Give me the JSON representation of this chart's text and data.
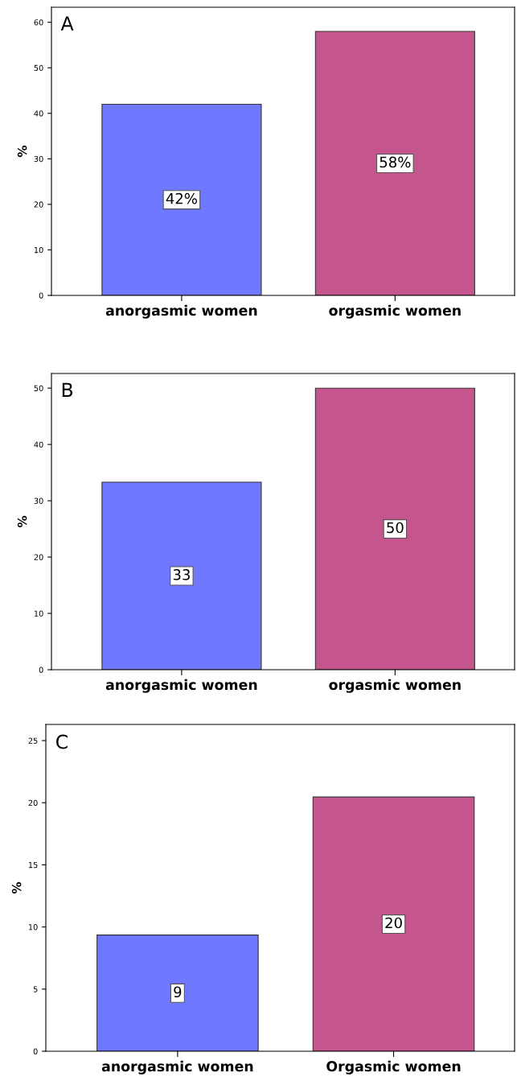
{
  "chart_data": [
    {
      "type": "bar",
      "ylabel": "%",
      "categories": [
        "anorgasmic women",
        "orgasmic women"
      ],
      "values": [
        42,
        58
      ],
      "colors": [
        "#6f78fe",
        "#c5558d"
      ],
      "value_labels": [
        "42%",
        "58%"
      ],
      "ylim": [
        0,
        63.3
      ],
      "yticks": [
        0,
        10,
        20,
        30,
        40,
        50,
        60
      ],
      "annotations": [
        "A"
      ],
      "grid": false,
      "legend": false
    },
    {
      "type": "bar",
      "ylabel": "%",
      "categories": [
        "anorgasmic women",
        "orgasmic women"
      ],
      "values": [
        33.3,
        50
      ],
      "colors": [
        "#6f78fe",
        "#c5558d"
      ],
      "value_labels": [
        "33",
        "50"
      ],
      "ylim": [
        0,
        52.6
      ],
      "yticks": [
        0,
        10,
        20,
        30,
        40,
        50
      ],
      "annotations": [
        "B"
      ],
      "grid": false,
      "legend": false
    },
    {
      "type": "bar",
      "ylabel": "%",
      "categories": [
        "anorgasmic women",
        "Orgasmic women"
      ],
      "values": [
        9.35,
        20.46
      ],
      "colors": [
        "#6f78fe",
        "#c5558d"
      ],
      "value_labels": [
        "9",
        "20"
      ],
      "ylim": [
        0,
        26.3
      ],
      "yticks": [
        0,
        5,
        10,
        15,
        20,
        25
      ],
      "annotations": [
        "C"
      ],
      "grid": false,
      "legend": false
    }
  ]
}
